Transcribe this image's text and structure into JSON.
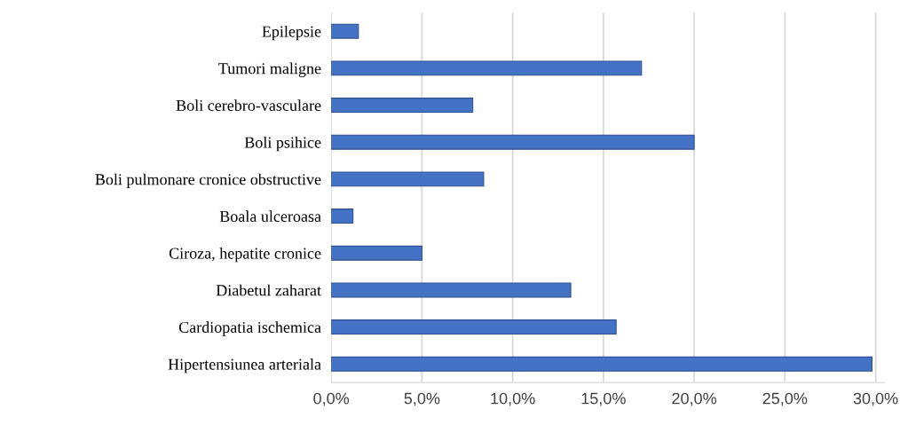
{
  "chart_data": {
    "type": "bar",
    "orientation": "horizontal",
    "categories": [
      "Epilepsie",
      "Tumori maligne",
      "Boli cerebro-vasculare",
      "Boli psihice",
      "Boli pulmonare cronice obstructive",
      "Boala ulceroasa",
      "Ciroza, hepatite cronice",
      "Diabetul zaharat",
      "Cardiopatia ischemica",
      "Hipertensiunea arteriala"
    ],
    "values": [
      1.5,
      17.1,
      7.8,
      20.0,
      8.4,
      1.2,
      5.0,
      13.2,
      15.7,
      29.8
    ],
    "color": "#4472c4",
    "xlim": [
      0,
      30.5
    ],
    "xticks": [
      {
        "value": 0,
        "label": "0,0%"
      },
      {
        "value": 5,
        "label": "5,0%"
      },
      {
        "value": 10,
        "label": "10,0%"
      },
      {
        "value": 15,
        "label": "15,0%"
      },
      {
        "value": 20,
        "label": "20,0%"
      },
      {
        "value": 25,
        "label": "25,0%"
      },
      {
        "value": 30,
        "label": "30,0%"
      }
    ],
    "grid": "x",
    "legend": false
  }
}
